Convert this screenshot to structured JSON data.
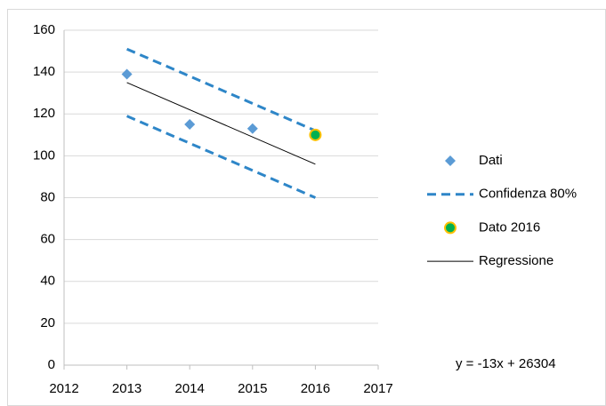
{
  "chart_data": {
    "type": "scatter",
    "xlim": [
      2012,
      2017
    ],
    "xticks": [
      2012,
      2013,
      2014,
      2015,
      2016,
      2017
    ],
    "ylim": [
      0,
      160
    ],
    "yticks": [
      0,
      20,
      40,
      60,
      80,
      100,
      120,
      140,
      160
    ],
    "grid": true,
    "legend": "right",
    "annotation": "y = -13x + 26304",
    "series": [
      {
        "name": "Dati",
        "color": "#5b9bd5",
        "marker": "diamond",
        "x": [
          2013,
          2014,
          2015
        ],
        "values": [
          139,
          115,
          113
        ]
      },
      {
        "name": "Confidenza 80%",
        "color": "#2e86c8",
        "dash": true,
        "x": [
          2013,
          2016,
          null,
          2013,
          2016
        ],
        "values": [
          151,
          112,
          null,
          119,
          80
        ]
      },
      {
        "name": "Dato 2016",
        "color": "#00b050",
        "edge": "#ffc000",
        "marker": "circle",
        "x": [
          2016
        ],
        "values": [
          110
        ]
      },
      {
        "name": "Regressione",
        "color": "#000000",
        "x": [
          2013,
          2016
        ],
        "values": [
          135,
          96
        ]
      }
    ]
  }
}
